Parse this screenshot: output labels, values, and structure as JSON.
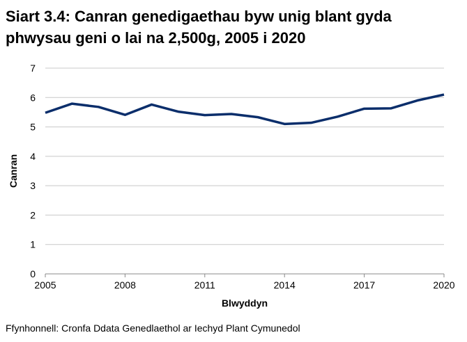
{
  "chart_data": {
    "type": "line",
    "title": "Siart 3.4: Canran genedigaethau byw unig blant gyda phwysau geni o lai na 2,500g, 2005 i 2020",
    "xlabel": "Blwyddyn",
    "ylabel": "Canran",
    "x": [
      2005,
      2006,
      2007,
      2008,
      2009,
      2010,
      2011,
      2012,
      2013,
      2014,
      2015,
      2016,
      2017,
      2018,
      2019,
      2020
    ],
    "values": [
      5.48,
      5.79,
      5.68,
      5.41,
      5.76,
      5.52,
      5.4,
      5.44,
      5.33,
      5.1,
      5.14,
      5.35,
      5.62,
      5.63,
      5.9,
      6.1
    ],
    "xlim": [
      2005,
      2020
    ],
    "ylim": [
      0,
      7
    ],
    "xticks": [
      "2005",
      "2008",
      "2011",
      "2014",
      "2017",
      "2020"
    ],
    "yticks": [
      "0",
      "1",
      "2",
      "3",
      "4",
      "5",
      "6",
      "7"
    ],
    "grid": true,
    "line_color": "#0b2e6b"
  },
  "source": "Ffynhonnell: Cronfa Ddata Genedlaethol ar Iechyd Plant Cymunedol"
}
